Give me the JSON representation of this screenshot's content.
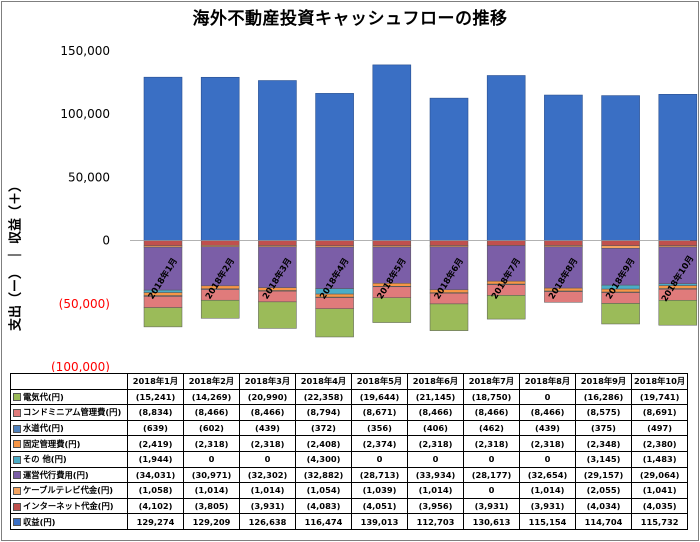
{
  "chart_data": {
    "type": "bar",
    "stacked": true,
    "title": "海外不動産投資キャッシュフローの推移",
    "ylabel": "支出（ー） ｜ 収益（＋）",
    "ylim": [
      -100000,
      150000
    ],
    "yticks": [
      "150,000",
      "100,000",
      "50,000",
      "0",
      "(50,000)",
      "(100,000)"
    ],
    "ytick_values": [
      150000,
      100000,
      50000,
      0,
      -50000,
      -100000
    ],
    "categories": [
      "2018年1月",
      "2018年2月",
      "2018年3月",
      "2018年4月",
      "2018年5月",
      "2018年6月",
      "2018年7月",
      "2018年8月",
      "2018年9月",
      "2018年10月"
    ],
    "legend_position": "table-bottom",
    "series": [
      {
        "name": "電気代(円)",
        "color": "#9bbb59",
        "values": [
          -15241,
          -14269,
          -20990,
          -22358,
          -19644,
          -21145,
          -18750,
          0,
          -16286,
          -19741
        ],
        "labels": [
          "(15,241)",
          "(14,269)",
          "(20,990)",
          "(22,358)",
          "(19,644)",
          "(21,145)",
          "(18,750)",
          "0",
          "(16,286)",
          "(19,741)"
        ]
      },
      {
        "name": "コンドミニアム管理費(円)",
        "color": "#e07b7b",
        "values": [
          -8834,
          -8466,
          -8466,
          -8794,
          -8671,
          -8466,
          -8466,
          -8466,
          -8575,
          -8691
        ],
        "labels": [
          "(8,834)",
          "(8,466)",
          "(8,466)",
          "(8,794)",
          "(8,671)",
          "(8,466)",
          "(8,466)",
          "(8,466)",
          "(8,575)",
          "(8,691)"
        ]
      },
      {
        "name": "水道代(円)",
        "color": "#4f81bd",
        "values": [
          -639,
          -602,
          -439,
          -372,
          -356,
          -406,
          -462,
          -439,
          -375,
          -497
        ],
        "labels": [
          "(639)",
          "(602)",
          "(439)",
          "(372)",
          "(356)",
          "(406)",
          "(462)",
          "(439)",
          "(375)",
          "(497)"
        ]
      },
      {
        "name": "固定管理費(円)",
        "color": "#f79646",
        "values": [
          -2419,
          -2318,
          -2318,
          -2408,
          -2374,
          -2318,
          -2318,
          -2318,
          -2348,
          -2380
        ],
        "labels": [
          "(2,419)",
          "(2,318)",
          "(2,318)",
          "(2,408)",
          "(2,374)",
          "(2,318)",
          "(2,318)",
          "(2,318)",
          "(2,348)",
          "(2,380)"
        ]
      },
      {
        "name": "その 他(円)",
        "color": "#4bacc6",
        "values": [
          -1944,
          0,
          0,
          -4300,
          0,
          0,
          0,
          0,
          -3145,
          -1483
        ],
        "labels": [
          "(1,944)",
          "0",
          "0",
          "(4,300)",
          "0",
          "0",
          "0",
          "0",
          "(3,145)",
          "(1,483)"
        ]
      },
      {
        "name": "運営代行費用(円)",
        "color": "#7b5ea7",
        "values": [
          -34031,
          -30971,
          -32302,
          -32882,
          -28713,
          -33934,
          -28177,
          -32654,
          -29157,
          -29064
        ],
        "labels": [
          "(34,031)",
          "(30,971)",
          "(32,302)",
          "(32,882)",
          "(28,713)",
          "(33,934)",
          "(28,177)",
          "(32,654)",
          "(29,157)",
          "(29,064)"
        ]
      },
      {
        "name": "ケーブルテレビ代金(円)",
        "color": "#f4a460",
        "values": [
          -1058,
          -1014,
          -1014,
          -1054,
          -1039,
          -1014,
          0,
          -1014,
          -2055,
          -1041
        ],
        "labels": [
          "(1,058)",
          "(1,014)",
          "(1,014)",
          "(1,054)",
          "(1,039)",
          "(1,014)",
          "0",
          "(1,014)",
          "(2,055)",
          "(1,041)"
        ]
      },
      {
        "name": "インターネット代金(円)",
        "color": "#c0504d",
        "values": [
          -4102,
          -3805,
          -3931,
          -4083,
          -4051,
          -3956,
          -3931,
          -3931,
          -4034,
          -4035
        ],
        "labels": [
          "(4,102)",
          "(3,805)",
          "(3,931)",
          "(4,083)",
          "(4,051)",
          "(3,956)",
          "(3,931)",
          "(3,931)",
          "(4,034)",
          "(4,035)"
        ]
      },
      {
        "name": "収益(円)",
        "color": "#3a6fc4",
        "values": [
          129274,
          129209,
          126638,
          116474,
          139013,
          112703,
          130613,
          115154,
          114704,
          115732
        ],
        "labels": [
          "129,274",
          "129,209",
          "126,638",
          "116,474",
          "139,013",
          "112,703",
          "130,613",
          "115,154",
          "114,704",
          "115,732"
        ]
      }
    ]
  }
}
